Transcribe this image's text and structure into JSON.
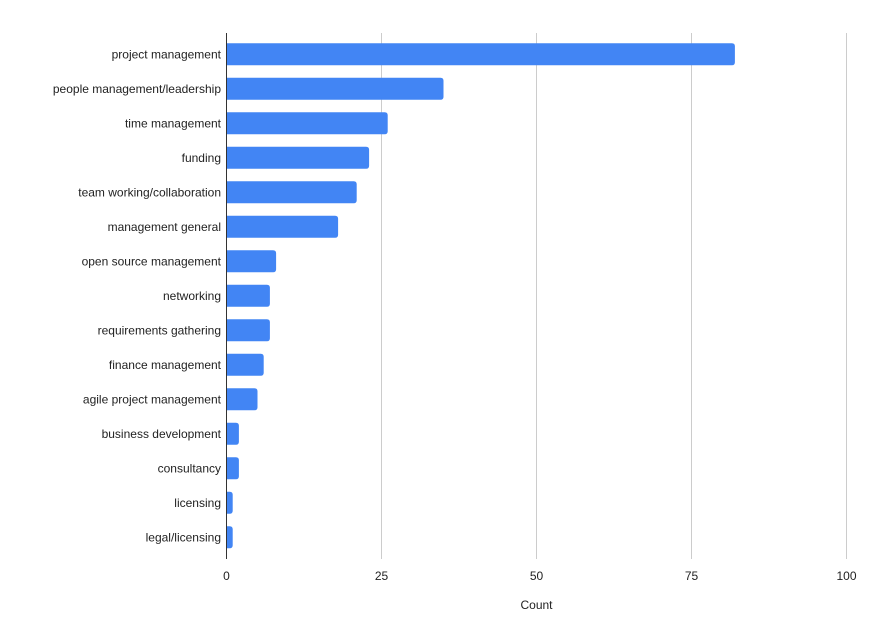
{
  "chart_data": {
    "type": "bar",
    "orientation": "horizontal",
    "categories": [
      "project management",
      "people management/leadership",
      "time management",
      "funding",
      "team working/collaboration",
      "management general",
      "open source management",
      "networking",
      "requirements gathering",
      "finance management",
      "agile project management",
      "business development",
      "consultancy",
      "licensing",
      "legal/licensing"
    ],
    "values": [
      82,
      35,
      26,
      23,
      21,
      18,
      8,
      7,
      7,
      6,
      5,
      2,
      2,
      1,
      1
    ],
    "xlabel": "Count",
    "ylabel": "",
    "xlim": [
      0,
      100
    ],
    "xticks": [
      0,
      25,
      50,
      75,
      100
    ],
    "xtick_labels": [
      "0",
      "25",
      "50",
      "75",
      "100"
    ],
    "grid": "vertical",
    "legend": "none",
    "bar_color": "#4285f4",
    "grid_color": "#cccccc",
    "axis_color": "#333333"
  }
}
